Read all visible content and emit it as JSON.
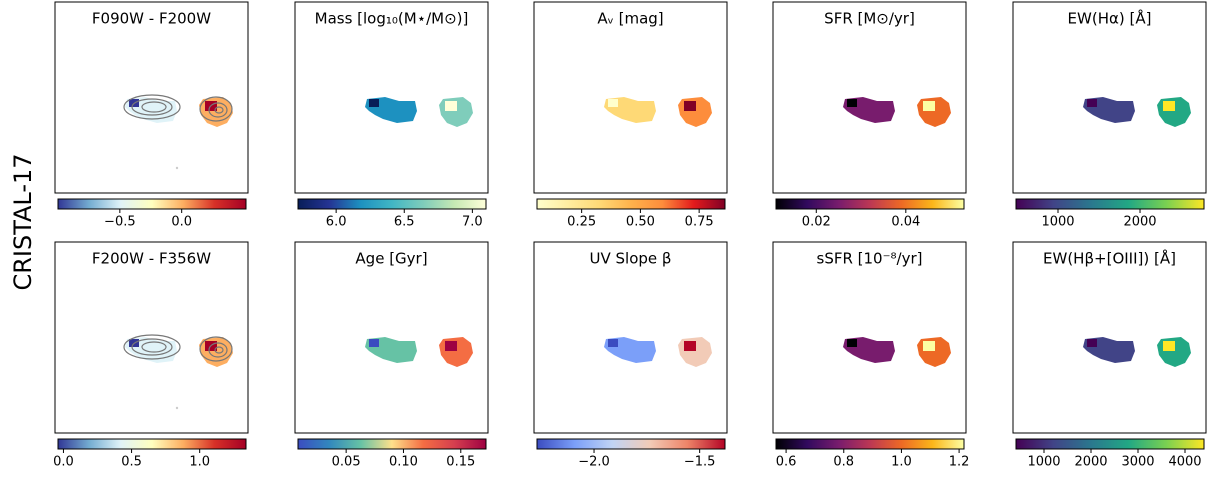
{
  "row_label": "CRISTAL-17",
  "rows": [
    {
      "panels": [
        {
          "title": "F090W - F200W",
          "colorbar": {
            "lim": [
              -1.0,
              0.52
            ],
            "ticks": [
              {
                "value": -0.5,
                "label": "−0.5"
              },
              {
                "value": 0,
                "label": "0.0"
              }
            ],
            "colors": [
              "#313695",
              "#74add1",
              "#e0f3f8",
              "#ffffbf",
              "#fdae61",
              "#d73027",
              "#a50026"
            ]
          }
        },
        {
          "title": "Mass [log₁₀(M⋆/M⊙)]",
          "colorbar": {
            "lim": [
              5.72,
              7.1
            ],
            "ticks": [
              {
                "value": 6,
                "label": "6.0"
              },
              6.5,
              {
                "value": 7,
                "label": "7.0"
              }
            ],
            "colors": [
              "#081d58",
              "#253494",
              "#1d91c0",
              "#41b6c4",
              "#7fcdbb",
              "#c7e9b4",
              "#ffffd9"
            ]
          }
        },
        {
          "title": "Aᵥ [mag]",
          "colorbar": {
            "lim": [
              0.06,
              0.86
            ],
            "ticks": [
              0.25,
              {
                "value": 0.5,
                "label": "0.50"
              },
              0.75
            ],
            "colors": [
              "#ffffcc",
              "#ffeda0",
              "#fed976",
              "#feb24c",
              "#fd8d3c",
              "#e31a1c",
              "#800026"
            ]
          }
        },
        {
          "title": "SFR [M⊙/yr]",
          "colorbar": {
            "lim": [
              0.011,
              0.053
            ],
            "ticks": [
              0.02,
              0.04
            ],
            "colors": [
              "#000004",
              "#320a5e",
              "#781c6d",
              "#bc3754",
              "#ed6925",
              "#fbb61a",
              "#fcffa4"
            ]
          }
        },
        {
          "title": "EW(Hα) [Å]",
          "colorbar": {
            "lim": [
              488,
              2780
            ],
            "ticks": [
              1000,
              2000
            ],
            "colors": [
              "#440154",
              "#414487",
              "#2a788e",
              "#22a884",
              "#7ad151",
              "#fde725"
            ]
          }
        }
      ]
    },
    {
      "panels": [
        {
          "title": "F200W - F356W",
          "colorbar": {
            "lim": [
              -0.04,
              1.34
            ],
            "ticks": [
              {
                "value": 0,
                "label": "0.0"
              },
              0.5,
              {
                "value": 1,
                "label": "1.0"
              }
            ],
            "colors": [
              "#313695",
              "#74add1",
              "#e0f3f8",
              "#ffffbf",
              "#fdae61",
              "#d73027",
              "#a50026"
            ]
          }
        },
        {
          "title": "Age [Gyr]",
          "colorbar": {
            "lim": [
              0.008,
              0.172
            ],
            "ticks": [
              0.05,
              {
                "value": 0.1,
                "label": "0.10"
              },
              0.15
            ],
            "colors": [
              "#3b4cc0",
              "#3288bd",
              "#66c2a5",
              "#fee08b",
              "#f46d43",
              "#d53e4f",
              "#9e0142"
            ]
          }
        },
        {
          "title": "UV Slope β",
          "colorbar": {
            "lim": [
              -2.27,
              -1.38
            ],
            "ticks": [
              {
                "value": -2,
                "label": "−2.0"
              },
              {
                "value": -1.5,
                "label": "−1.5"
              }
            ],
            "colors": [
              "#3b4cc0",
              "#7b9ff9",
              "#c0d4f5",
              "#f2cbb7",
              "#ee8468",
              "#b40426"
            ]
          }
        },
        {
          "title": "sSFR [10⁻⁸/yr]",
          "colorbar": {
            "lim": [
              0.565,
              1.217
            ],
            "ticks": [
              0.6,
              0.8,
              {
                "value": 1,
                "label": "1.0"
              },
              1.2
            ],
            "colors": [
              "#000004",
              "#320a5e",
              "#781c6d",
              "#bc3754",
              "#ed6925",
              "#fbb61a",
              "#fcffa4"
            ]
          }
        },
        {
          "title": "EW(Hβ+[OIII]) [Å]",
          "colorbar": {
            "lim": [
              404,
              4404
            ],
            "ticks": [
              1000,
              2000,
              3000,
              4000
            ],
            "colors": [
              "#440154",
              "#414487",
              "#2a788e",
              "#22a884",
              "#7ad151",
              "#fde725"
            ]
          }
        }
      ]
    }
  ]
}
